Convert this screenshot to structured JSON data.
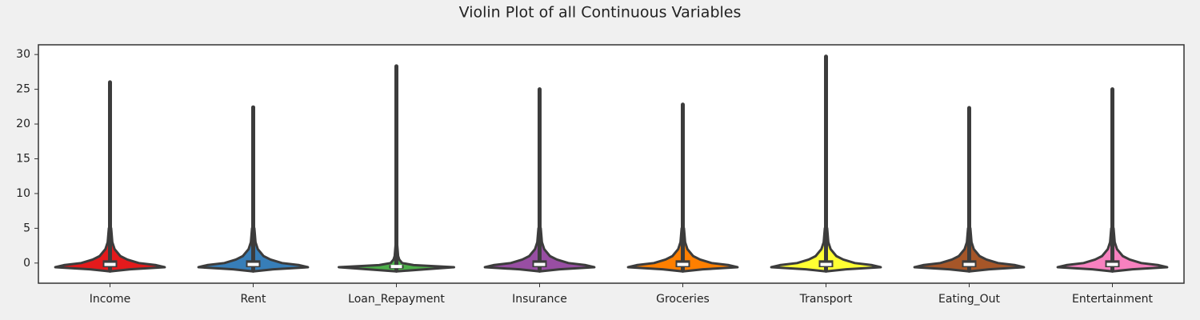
{
  "chart_data": {
    "type": "violin",
    "title": "Violin Plot of all Continuous Variables",
    "ylim": [
      -2.9,
      31.4
    ],
    "yticks": [
      0,
      5,
      10,
      15,
      20,
      25,
      30
    ],
    "density_y": [
      -1.2,
      -0.9,
      -0.6,
      -0.3,
      0,
      0.5,
      1,
      2,
      3,
      5
    ],
    "series": [
      {
        "name": "Income",
        "color": "#e41a1c",
        "max": 26,
        "min": -1.1,
        "q1": -0.6,
        "median": -0.2,
        "q3": 0.4,
        "density": [
          0,
          0.35,
          0.95,
          0.8,
          0.5,
          0.3,
          0.18,
          0.08,
          0.04,
          0.02
        ]
      },
      {
        "name": "Rent",
        "color": "#377eb8",
        "max": 22.4,
        "min": -1.1,
        "q1": -0.6,
        "median": -0.2,
        "q3": 0.4,
        "density": [
          0,
          0.35,
          0.95,
          0.8,
          0.5,
          0.3,
          0.18,
          0.08,
          0.04,
          0.02
        ]
      },
      {
        "name": "Loan_Repayment",
        "color": "#4daf4a",
        "max": 28.3,
        "min": -1.1,
        "q1": -0.8,
        "median": -0.5,
        "q3": -0.3,
        "density": [
          0,
          0.5,
          1,
          0.3,
          0.1,
          0.05,
          0.03,
          0.02,
          0.01,
          0.005
        ]
      },
      {
        "name": "Insurance",
        "color": "#984ea3",
        "max": 25,
        "min": -1.1,
        "q1": -0.6,
        "median": -0.2,
        "q3": 0.4,
        "density": [
          0,
          0.35,
          0.95,
          0.8,
          0.5,
          0.3,
          0.18,
          0.08,
          0.04,
          0.02
        ]
      },
      {
        "name": "Groceries",
        "color": "#ff7f00",
        "max": 22.8,
        "min": -1.1,
        "q1": -0.6,
        "median": -0.2,
        "q3": 0.4,
        "density": [
          0,
          0.35,
          0.95,
          0.8,
          0.5,
          0.3,
          0.18,
          0.08,
          0.04,
          0.02
        ]
      },
      {
        "name": "Transport",
        "color": "#ffff33",
        "max": 29.7,
        "min": -1.1,
        "q1": -0.6,
        "median": -0.2,
        "q3": 0.4,
        "density": [
          0,
          0.35,
          0.95,
          0.8,
          0.5,
          0.3,
          0.18,
          0.08,
          0.04,
          0.02
        ]
      },
      {
        "name": "Eating_Out",
        "color": "#a65628",
        "max": 22.3,
        "min": -1.1,
        "q1": -0.6,
        "median": -0.2,
        "q3": 0.4,
        "density": [
          0,
          0.35,
          0.95,
          0.8,
          0.5,
          0.3,
          0.18,
          0.08,
          0.04,
          0.02
        ]
      },
      {
        "name": "Entertainment",
        "color": "#f781bf",
        "max": 25,
        "min": -1.1,
        "q1": -0.6,
        "median": -0.2,
        "q3": 0.4,
        "density": [
          0,
          0.35,
          0.95,
          0.8,
          0.5,
          0.3,
          0.18,
          0.08,
          0.04,
          0.02
        ]
      }
    ]
  }
}
